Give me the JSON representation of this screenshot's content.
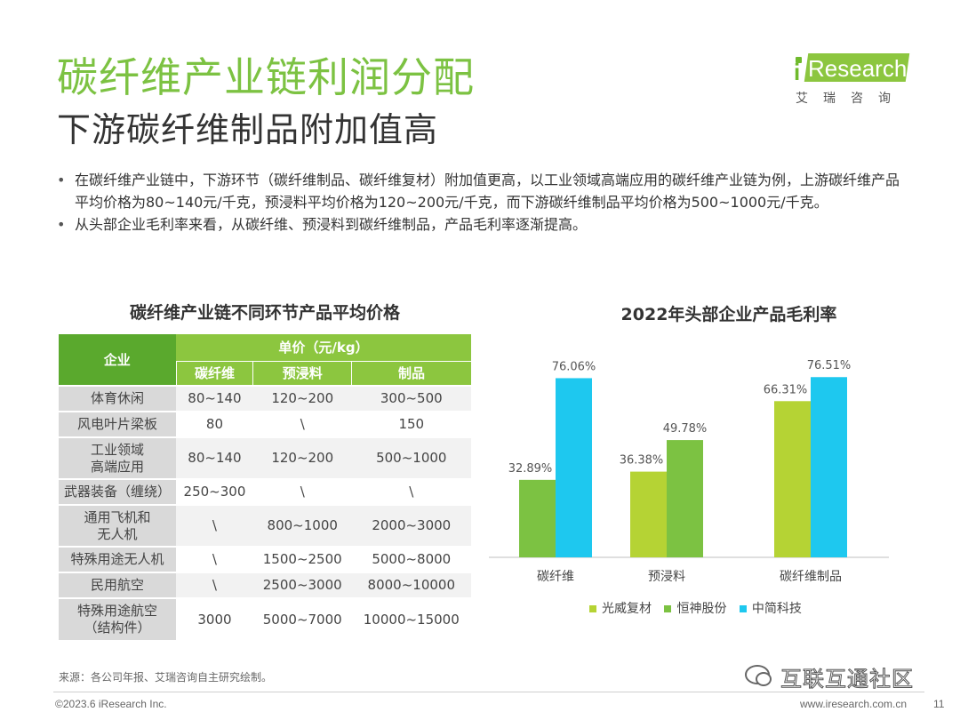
{
  "header": {
    "title": "碳纤维产业链利润分配",
    "subtitle": "下游碳纤维制品附加值高"
  },
  "logo": {
    "i": "i",
    "word": "Research",
    "cn": "艾瑞咨询"
  },
  "bullets": [
    "在碳纤维产业链中，下游环节（碳纤维制品、碳纤维复材）附加值更高，以工业领域高端应用的碳纤维产业链为例，上游碳纤维产品平均价格为80~140元/千克，预浸料平均价格为120~200元/千克，而下游碳纤维制品平均价格为500~1000元/千克。",
    "从头部企业毛利率来看，从碳纤维、预浸料到碳纤维制品，产品毛利率逐渐提高。"
  ],
  "price_table": {
    "title": "碳纤维产业链不同环节产品平均价格",
    "header": {
      "enterprise": "企业",
      "unit": "单价（元/kg）",
      "cols": [
        "碳纤维",
        "预浸料",
        "制品"
      ]
    },
    "rows": [
      {
        "name": "体育休闲",
        "values": [
          "80~140",
          "120~200",
          "300~500"
        ]
      },
      {
        "name": "风电叶片梁板",
        "values": [
          "80",
          "\\",
          "150"
        ]
      },
      {
        "name": "工业领域\n高端应用",
        "values": [
          "80~140",
          "120~200",
          "500~1000"
        ]
      },
      {
        "name": "武器装备（缠绕）",
        "values": [
          "250~300",
          "\\",
          "\\"
        ]
      },
      {
        "name": "通用飞机和\n无人机",
        "values": [
          "\\",
          "800~1000",
          "2000~3000"
        ]
      },
      {
        "name": "特殊用途无人机",
        "values": [
          "\\",
          "1500~2500",
          "5000~8000"
        ]
      },
      {
        "name": "民用航空",
        "values": [
          "\\",
          "2500~3000",
          "8000~10000"
        ]
      },
      {
        "name": "特殊用途航空\n（结构件）",
        "values": [
          "3000",
          "5000~7000",
          "10000~15000"
        ]
      }
    ]
  },
  "chart_data": {
    "type": "bar",
    "title": "2022年头部企业产品毛利率",
    "categories": [
      "碳纤维",
      "预浸料",
      "碳纤维制品"
    ],
    "series": [
      {
        "name": "光威复材",
        "color": "#b5d334",
        "values": [
          null,
          36.38,
          66.31
        ]
      },
      {
        "name": "恒神股份",
        "color": "#7cc242",
        "values": [
          32.89,
          49.78,
          null
        ]
      },
      {
        "name": "中简科技",
        "color": "#1ec8ef",
        "values": [
          76.06,
          null,
          76.51
        ]
      }
    ],
    "labels": [
      [
        null,
        "36.38%",
        "66.31%"
      ],
      [
        "32.89%",
        "49.78%",
        null
      ],
      [
        "76.06%",
        null,
        "76.51%"
      ]
    ],
    "ylim": [
      0,
      100
    ],
    "grid": false,
    "legend": "bottom"
  },
  "footer": {
    "source": "来源：各公司年报、艾瑞咨询自主研究绘制。",
    "copyright": "©2023.6 iResearch Inc.",
    "site": "www.iresearch.com.cn",
    "page": "11"
  },
  "watermark": {
    "text": "互联互通社区"
  }
}
